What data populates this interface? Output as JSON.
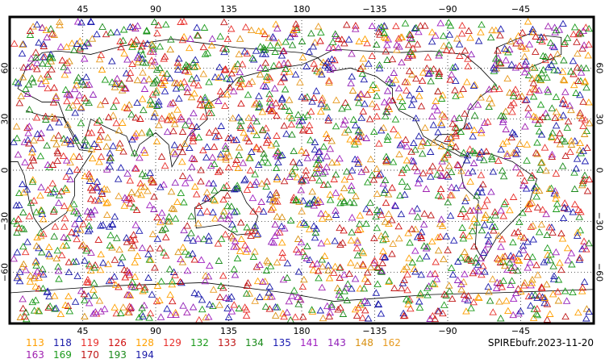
{
  "chart_data": {
    "type": "scatter",
    "projection": "equirectangular",
    "marker": "triangle-outline",
    "central_longitude": 180,
    "top_ticks": [
      "45",
      "90",
      "135",
      "180",
      "−135",
      "−90",
      "−45"
    ],
    "bottom_ticks": [
      "45",
      "90",
      "135",
      "180",
      "−135",
      "−90",
      "−45"
    ],
    "left_ticks": [
      "60",
      "30",
      "0",
      "−30",
      "−60"
    ],
    "right_ticks": [
      "60",
      "30",
      "0",
      "−30",
      "−60"
    ],
    "xlim": [
      0,
      360
    ],
    "ylim": [
      -90,
      90
    ],
    "grid": "dotted",
    "legend_placement": "bottom",
    "series": [
      {
        "name": "113",
        "color": "#ff9f00"
      },
      {
        "name": "118",
        "color": "#1a1aa8"
      },
      {
        "name": "119",
        "color": "#e8302c"
      },
      {
        "name": "126",
        "color": "#d01010"
      },
      {
        "name": "128",
        "color": "#ffa000"
      },
      {
        "name": "129",
        "color": "#e8302c"
      },
      {
        "name": "132",
        "color": "#1a9a1a"
      },
      {
        "name": "133",
        "color": "#c01818"
      },
      {
        "name": "134",
        "color": "#1a8a1a"
      },
      {
        "name": "135",
        "color": "#1a1ab0"
      },
      {
        "name": "141",
        "color": "#a020c0"
      },
      {
        "name": "143",
        "color": "#9020b8"
      },
      {
        "name": "148",
        "color": "#d89010"
      },
      {
        "name": "162",
        "color": "#e89a20"
      },
      {
        "name": "163",
        "color": "#a020b0"
      },
      {
        "name": "169",
        "color": "#1a9a1a"
      },
      {
        "name": "170",
        "color": "#c01818"
      },
      {
        "name": "193",
        "color": "#1a8a1a"
      },
      {
        "name": "194",
        "color": "#1a1aa8"
      }
    ]
  },
  "caption": "SPIREbufr.2023-11-20"
}
